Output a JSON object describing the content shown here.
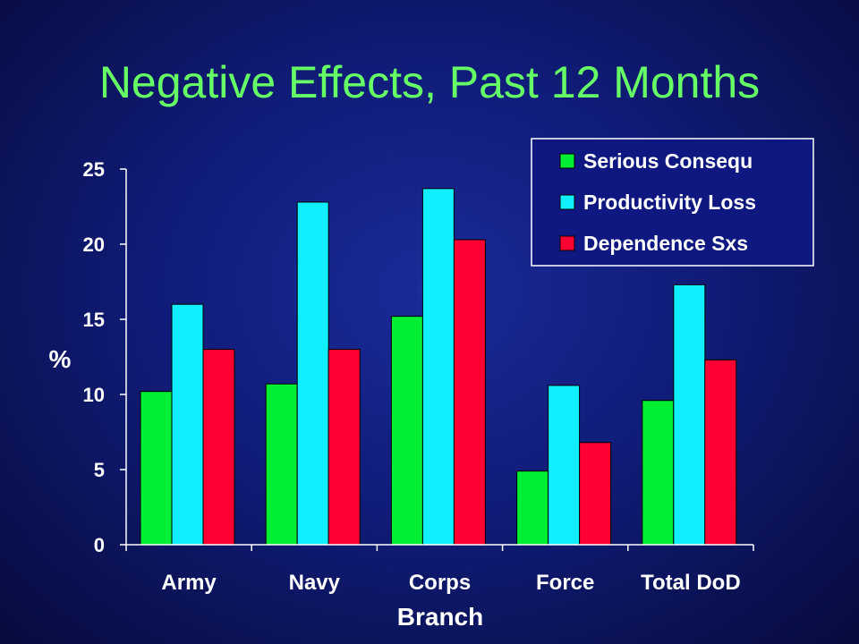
{
  "slide": {
    "title": "Negative Effects, Past 12 Months"
  },
  "chart_data": {
    "type": "bar",
    "title": "",
    "xlabel": "Branch",
    "ylabel": "%",
    "ylim": [
      0,
      25
    ],
    "yticks": [
      "0",
      "5",
      "10",
      "15",
      "20",
      "25"
    ],
    "grid": false,
    "legend_placement": "top-right",
    "categories": [
      "Army",
      "Navy",
      "Corps",
      "Force",
      "Total DoD"
    ],
    "series": [
      {
        "name": "Serious Consequ",
        "color": "#00ee33",
        "values": [
          10.2,
          10.7,
          15.2,
          4.9,
          9.6
        ]
      },
      {
        "name": "Productivity Loss",
        "color": "#11eeff",
        "values": [
          16.0,
          22.8,
          23.7,
          10.6,
          17.3
        ]
      },
      {
        "name": "Dependence Sxs",
        "color": "#ff0033",
        "values": [
          13.0,
          13.0,
          20.3,
          6.8,
          12.3
        ]
      }
    ],
    "axis_color": "#ffffff",
    "text_color": "#ffffff"
  }
}
